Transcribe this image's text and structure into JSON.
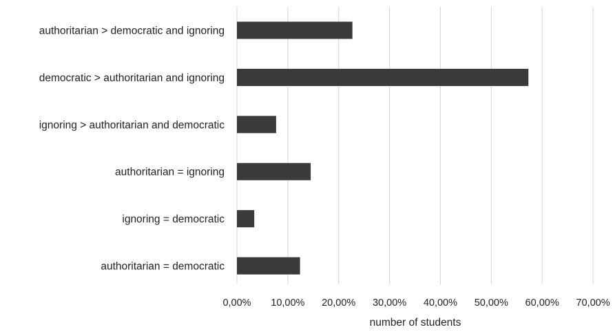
{
  "chart_data": {
    "type": "bar",
    "orientation": "horizontal",
    "categories": [
      "authoritarian > democratic and ignoring",
      "democratic > authoritarian and ignoring",
      "ignoring > authoritarian and democratic",
      "authoritarian = ignoring",
      "ignoring = democratic",
      "authoritarian = democratic"
    ],
    "values": [
      22.7,
      57.3,
      7.7,
      14.5,
      3.4,
      12.4
    ],
    "xlabel": "number of students",
    "xlim": [
      0,
      70
    ],
    "xticks": [
      0,
      10,
      20,
      30,
      40,
      50,
      60,
      70
    ],
    "xtick_labels": [
      "0,00%",
      "10,00%",
      "20,00%",
      "30,00%",
      "40,00%",
      "50,00%",
      "60,00%",
      "70,00%"
    ],
    "grid": "vertical",
    "legend": "none",
    "bar_color": "#3a3a3a",
    "grid_color": "#d4d4d4"
  }
}
